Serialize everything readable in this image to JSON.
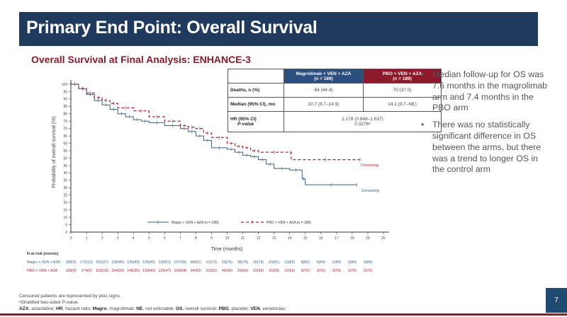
{
  "header": {
    "title": "Primary End Point: Overall Survival"
  },
  "subtitle": "Overall Survival at Final Analysis: ENHANCE-3",
  "stats_table": {
    "col_headers": [
      "Magrolimab + VEN + AZA\n(n = 189)",
      "PBO + VEN + AZA\n(n = 189)"
    ],
    "col1_line1": "Magrolimab + VEN + AZA",
    "col1_line2": "(n = 189)",
    "col2_line1": "PBO + VEN + AZA",
    "col2_line2": "(n = 189)",
    "rows": [
      {
        "label": "Deaths, n (%)",
        "magro": "84 (44.4)",
        "pbo": "70 (37.0)"
      },
      {
        "label": "Median (95% CI), mo",
        "magro": "10.7 (8.7–14.9)",
        "pbo": "14.1 (9.7–NE)"
      }
    ],
    "hr_label": "HR (95% CI)",
    "p_label": "P-value",
    "hr_value": "1.178 (0.848–1.637)",
    "p_value": "0.3276ᵃ"
  },
  "bullets": [
    "Median follow-up for OS was 7.6 months in the magrolimab arm and 7.4 months in the PBO arm",
    "There was no statistically significant difference in OS between the arms, but there was a trend to longer OS in the control arm"
  ],
  "chart_data": {
    "type": "line",
    "title": "Overall Survival at Final Analysis: ENHANCE-3",
    "xlabel": "Time (months)",
    "ylabel": "Probability of overall survival (%)",
    "xlim": [
      0,
      20
    ],
    "ylim": [
      0,
      100
    ],
    "xticks": [
      0,
      1,
      2,
      3,
      4,
      5,
      6,
      7,
      8,
      9,
      10,
      11,
      12,
      13,
      14,
      15,
      16,
      17,
      18,
      19,
      20
    ],
    "yticks": [
      0,
      5,
      10,
      15,
      20,
      25,
      30,
      35,
      40,
      45,
      50,
      55,
      60,
      65,
      70,
      75,
      80,
      85,
      90,
      95,
      100
    ],
    "legend": [
      "Magro + VEN + AZA (n = 189)",
      "PBO + VEN + AZA (n = 189)"
    ],
    "annotations": [
      "Censoring",
      "Censoring"
    ],
    "series": [
      {
        "name": "Magro + VEN + AZA (n = 189)",
        "color": "#3d5f80",
        "style": "solid",
        "x": [
          0,
          0.5,
          1,
          1.5,
          2,
          2.5,
          3,
          3.5,
          4,
          4.5,
          5,
          6,
          7,
          7.5,
          8,
          8.5,
          9,
          10,
          10.5,
          11,
          11.5,
          12,
          12.5,
          13,
          14,
          14.8,
          15,
          18.3
        ],
        "y": [
          100,
          97,
          93,
          89,
          86,
          83,
          80,
          78,
          76,
          75,
          74,
          72,
          70,
          68,
          65,
          62,
          57,
          56,
          54,
          52,
          51,
          49,
          46,
          43,
          42,
          36,
          32,
          32
        ]
      },
      {
        "name": "PBO + VEN + AZA (n = 189)",
        "color": "#a8283b",
        "style": "dashed",
        "x": [
          0,
          0.5,
          1,
          1.5,
          2,
          2.5,
          3,
          4,
          5,
          6,
          7,
          7.5,
          8,
          8.5,
          9,
          10,
          10.5,
          11,
          11.5,
          12,
          14,
          14.1,
          18.5
        ],
        "y": [
          100,
          97,
          94,
          91,
          89,
          87,
          84,
          82,
          78,
          75,
          72,
          71,
          70,
          67,
          64,
          60,
          58,
          57,
          55,
          54,
          54,
          49,
          49
        ]
      }
    ],
    "n_at_risk": {
      "title": "N at risk (events)",
      "magro": [
        "189(0)",
        "173(13)",
        "152(27)",
        "138(40)",
        "135(43)",
        "129(45)",
        "120(51)",
        "107(56)",
        "84(61)",
        "61(72)",
        "50(75)",
        "38(78)",
        "30(79)",
        "20(81)",
        "13(82)",
        "8(83)",
        "5(84)",
        "2(84)",
        "2(84)",
        "0(84)"
      ],
      "pbo": [
        "189(0)",
        "174(9)",
        "163(19)",
        "154(26)",
        "146(30)",
        "134(40)",
        "125(47)",
        "104(54)",
        "84(59)",
        "63(63)",
        "46(66)",
        "29(69)",
        "22(69)",
        "16(69)",
        "12(69)",
        "8(70)",
        "3(70)",
        "3(70)",
        "1(70)",
        "0(70)"
      ]
    }
  },
  "risk_labels": {
    "title": "N at risk (events)",
    "magro": "Magro + VEN + AZA",
    "pbo": "PBO + VEN + AZA"
  },
  "footer": {
    "line1": "Censored patients are represented by plus signs.",
    "line2": "ᵃStratified two-sided P-value.",
    "line3": "AZA, azacitidine; HR, hazard ratio; Magro, magrolimab; NE, not estimable; OS, overall survival; PBO, placebo; VEN, venetoclax."
  },
  "page_number": "7",
  "colors": {
    "header_bg": "#1f3a5c",
    "accent_red": "#8b1a2b",
    "magro_blue": "#3d5f80",
    "pbo_red": "#a8283b"
  }
}
